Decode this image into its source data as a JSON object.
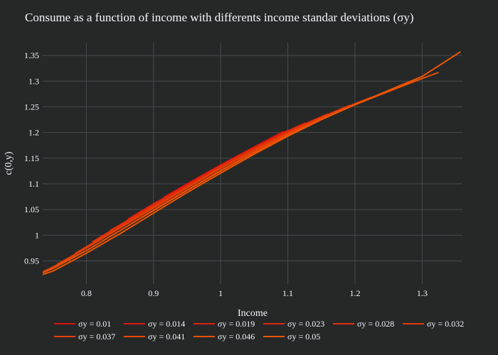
{
  "chart_data": {
    "type": "line",
    "title": "Consume as a function of income with differents income standar deviations (σy)",
    "xlabel": "Income",
    "ylabel": "c(0,y)",
    "xlim": [
      0.735,
      1.36
    ],
    "ylim": [
      0.905,
      1.375
    ],
    "xticks": [
      0.8,
      0.9,
      1,
      1.1,
      1.2,
      1.3
    ],
    "xtick_labels": [
      "0.8",
      "0.9",
      "1",
      "1.1",
      "1.2",
      "1.3"
    ],
    "yticks": [
      0.95,
      1,
      1.05,
      1.1,
      1.15,
      1.2,
      1.25,
      1.3,
      1.35
    ],
    "ytick_labels": [
      "0.95",
      "1",
      "1.05",
      "1.1",
      "1.15",
      "1.2",
      "1.25",
      "1.3",
      "1.35"
    ],
    "grid": true,
    "legend_position": "bottom",
    "background": "#262828",
    "grid_color": "#474a4d",
    "series": [
      {
        "name": "σy = 0.01",
        "color": "#d8120d",
        "x": [
          0.9145,
          0.95,
          1.0,
          1.05,
          1.0935
        ],
        "y": [
          1.073,
          1.1,
          1.137,
          1.172,
          1.202
        ]
      },
      {
        "name": "σy = 0.014",
        "color": "#da1a0c",
        "x": [
          0.8881,
          0.95,
          1.0,
          1.05,
          1.1
        ],
        "y": [
          1.052,
          1.098,
          1.136,
          1.171,
          1.204
        ]
      },
      {
        "name": "σy = 0.019",
        "color": "#dc210b",
        "x": [
          0.8618,
          0.9,
          0.95,
          1.0,
          1.05,
          1.1,
          1.1265
        ],
        "y": [
          1.031,
          1.061,
          1.097,
          1.135,
          1.17,
          1.203,
          1.219
        ]
      },
      {
        "name": "σy = 0.023",
        "color": "#df290a",
        "x": [
          0.8354,
          0.9,
          0.95,
          1.0,
          1.05,
          1.1,
          1.1595
        ],
        "y": [
          1.009,
          1.058,
          1.096,
          1.134,
          1.169,
          1.202,
          1.236
        ]
      },
      {
        "name": "σy = 0.028",
        "color": "#e13009",
        "x": [
          0.809,
          0.85,
          0.9,
          0.95,
          1.0,
          1.05,
          1.1,
          1.15,
          1.1925
        ],
        "y": [
          0.987,
          1.019,
          1.057,
          1.095,
          1.133,
          1.168,
          1.201,
          1.23,
          1.253
        ]
      },
      {
        "name": "σy = 0.032",
        "color": "#e33808",
        "x": [
          0.7827,
          0.85,
          0.9,
          0.95,
          1.0,
          1.05,
          1.1,
          1.15,
          1.2,
          1.2254
        ],
        "y": [
          0.964,
          1.016,
          1.055,
          1.093,
          1.131,
          1.166,
          1.199,
          1.229,
          1.256,
          1.269
        ]
      },
      {
        "name": "σy = 0.037",
        "color": "#e53f07",
        "x": [
          0.7563,
          0.8,
          0.85,
          0.9,
          0.95,
          1.0,
          1.05,
          1.1,
          1.15,
          1.2,
          1.2584
        ],
        "y": [
          0.943,
          0.975,
          1.014,
          1.053,
          1.092,
          1.13,
          1.165,
          1.198,
          1.228,
          1.255,
          1.284
        ]
      },
      {
        "name": "σy = 0.041",
        "color": "#e84706",
        "x": [
          0.7299,
          0.8,
          0.85,
          0.9,
          0.95,
          1.0,
          1.05,
          1.1,
          1.15,
          1.2,
          1.25,
          1.2914
        ],
        "y": [
          0.925,
          0.97,
          1.009,
          1.049,
          1.088,
          1.126,
          1.162,
          1.196,
          1.227,
          1.255,
          1.281,
          1.301
        ]
      },
      {
        "name": "σy = 0.046",
        "color": "#ea4e05",
        "x": [
          0.7036,
          0.75,
          0.8,
          0.85,
          0.9,
          0.95,
          1.0,
          1.05,
          1.1,
          1.15,
          1.2,
          1.25,
          1.3,
          1.3244
        ],
        "y": [
          0.91,
          0.935,
          0.97,
          1.009,
          1.048,
          1.087,
          1.125,
          1.161,
          1.195,
          1.226,
          1.254,
          1.28,
          1.305,
          1.317
        ]
      },
      {
        "name": "σy = 0.05",
        "color": "#ec5604",
        "x": [
          0.6772,
          0.75,
          0.8,
          0.85,
          0.9,
          0.95,
          1.0,
          1.05,
          1.1,
          1.15,
          1.2,
          1.25,
          1.3,
          1.357
        ],
        "y": [
          0.899,
          0.93,
          0.965,
          1.003,
          1.043,
          1.083,
          1.121,
          1.158,
          1.193,
          1.225,
          1.254,
          1.282,
          1.309,
          1.357
        ]
      }
    ]
  }
}
